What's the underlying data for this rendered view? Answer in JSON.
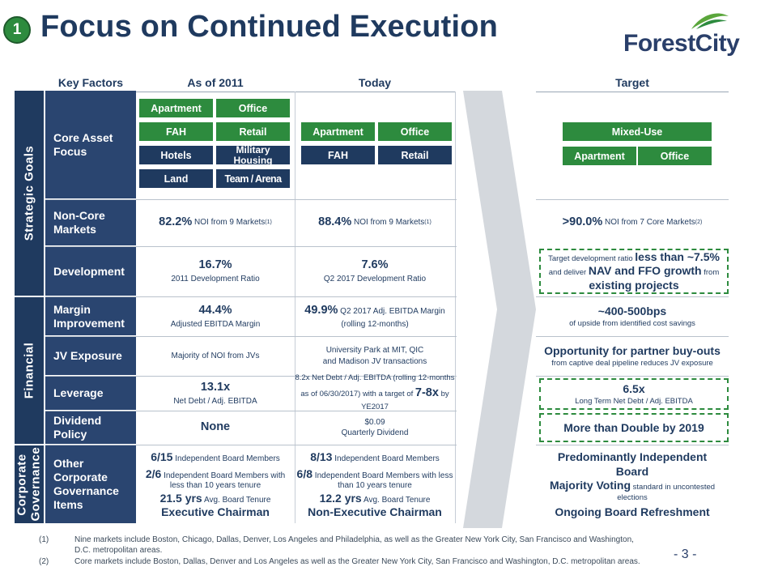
{
  "badge": "1",
  "title": "Focus on Continued Execution",
  "logo": "ForestCity",
  "columns": {
    "key_factors": "Key Factors",
    "as_of_2011": "As of 2011",
    "today": "Today",
    "target": "Target"
  },
  "sections": {
    "strategic": "Strategic Goals",
    "financial": "Financial",
    "corporate": "Corporate Governance"
  },
  "rows": {
    "core": "Core Asset Focus",
    "noncore": "Non-Core Markets",
    "development": "Development",
    "margin": "Margin Improvement",
    "jv": "JV Exposure",
    "leverage": "Leverage",
    "dividend": "Dividend Policy",
    "governance": "Other Corporate Governance Items"
  },
  "core_2011": [
    "Apartment",
    "Office",
    "FAH",
    "Retail",
    "Hotels",
    "Military Housing",
    "Land",
    "Team / Arena"
  ],
  "core_today": [
    "Apartment",
    "Office",
    "FAH",
    "Retail"
  ],
  "core_target": {
    "mixed": "Mixed-Use",
    "apartment": "Apartment",
    "office": "Office"
  },
  "noncore": {
    "y2011_big": "82.2%",
    "y2011_small": "NOI from 9 Markets",
    "y2011_sup": "(1)",
    "today_big": "88.4%",
    "today_small": "NOI from 9 Markets",
    "today_sup": "(1)",
    "target_big": ">90.0%",
    "target_small": "NOI from 7 Core Markets",
    "target_sup": "(2)"
  },
  "development": {
    "y2011_big": "16.7%",
    "y2011_small": "2011 Development Ratio",
    "today_big": "7.6%",
    "today_small": "Q2 2017 Development Ratio",
    "target_pre": "Target development ratio ",
    "target_b1": "less than ~7.5%",
    "target_mid": "and deliver ",
    "target_b2": "NAV and FFO growth",
    "target_post": " from",
    "target_b3": "existing projects"
  },
  "margin": {
    "y2011_big": "44.4%",
    "y2011_small": "Adjusted EBITDA Margin",
    "today_big": "49.9%",
    "today_small": " Q2 2017 Adj. EBITDA Margin",
    "today_small2": "(rolling 12-months)",
    "target_big": "~400-500bps",
    "target_small": "of upside from identified cost savings"
  },
  "jv": {
    "y2011": "Majority of NOI from JVs",
    "today1": "University Park at MIT, QIC",
    "today2": "and Madison JV transactions",
    "target_big": "Opportunity for partner buy-outs",
    "target_small": "from captive deal pipeline reduces JV exposure"
  },
  "leverage": {
    "y2011_big": "13.1x",
    "y2011_small": "Net Debt / Adj. EBITDA",
    "today1": "8.2x Net Debt / Adj. EBITDA (rolling 12-months",
    "today2": "as of 06/30/2017) with a target of ",
    "today_big": "7-8x",
    "today3": " by",
    "today4": "YE2017",
    "target_big": "6.5x",
    "target_small": "Long Term Net Debt / Adj. EBITDA"
  },
  "dividend": {
    "y2011": "None",
    "today1": "$0.09",
    "today2": "Quarterly Dividend",
    "target": "More than Double by 2019"
  },
  "governance": {
    "y2011_l1b": "6/15",
    "y2011_l1s": " Independent Board Members",
    "y2011_l2b": "2/6",
    "y2011_l2s": " Independent Board Members with",
    "y2011_l2s2": "less than 10 years tenure",
    "y2011_l3b": "21.5 yrs",
    "y2011_l3s": " Avg. Board Tenure",
    "y2011_l4": "Executive Chairman",
    "today_l1b": "8/13",
    "today_l1s": " Independent Board Members",
    "today_l2b": "6/8",
    "today_l2s": " Independent Board Members with less",
    "today_l2s2": "than 10 years tenure",
    "today_l3b": "12.2 yrs",
    "today_l3s": " Avg. Board Tenure",
    "today_l4": "Non-Executive Chairman",
    "target_l1": "Predominantly Independent",
    "target_l1b": "Board",
    "target_l2b": "Majority Voting",
    "target_l2s": " standard in uncontested",
    "target_l2s2": "elections",
    "target_l3": "Ongoing Board Refreshment"
  },
  "footnotes": [
    {
      "num": "(1)",
      "text": "Nine markets include Boston, Chicago, Dallas, Denver, Los Angeles and Philadelphia, as well as the Greater New York City, San Francisco and Washington,",
      "text2": "D.C. metropolitan areas."
    },
    {
      "num": "(2)",
      "text": "Core markets include Boston, Dallas, Denver and Los Angeles as well as the Greater New York City, San Francisco and Washington, D.C. metropolitan areas."
    }
  ],
  "page_number": "- 3 -",
  "colors": {
    "navy": "#1f3a5f",
    "green": "#2d8b3e",
    "arrow": "#d4d8dd"
  }
}
